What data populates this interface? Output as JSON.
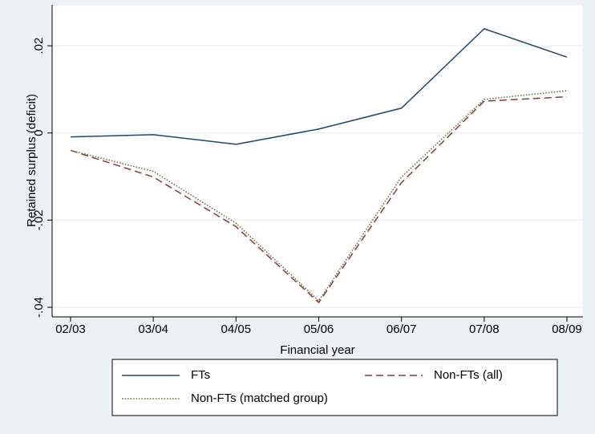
{
  "chart_data": {
    "type": "line",
    "x_label": "Financial year",
    "y_label": "Retained surplus (deficit)",
    "categories": [
      "02/03",
      "03/04",
      "04/05",
      "05/06",
      "06/07",
      "07/08",
      "08/09"
    ],
    "series": [
      {
        "name": "FTs",
        "color": "#1a476f",
        "dash": "solid",
        "values": [
          -0.0009,
          -0.0004,
          -0.0026,
          0.0009,
          0.0057,
          0.0239,
          0.0174
        ]
      },
      {
        "name": "Non-FTs (all)",
        "color": "#90353b",
        "dash": "dashed",
        "values": [
          -0.004,
          -0.0101,
          -0.0215,
          -0.0389,
          -0.0114,
          0.0073,
          0.0083
        ]
      },
      {
        "name": "Non-FTs (matched group)",
        "color": "#55752f",
        "dash": "dotted",
        "values": [
          -0.004,
          -0.0088,
          -0.0207,
          -0.0385,
          -0.0101,
          0.0077,
          0.0097
        ]
      }
    ],
    "ylim": [
      -0.0422,
      0.0294
    ],
    "yticks": [
      {
        "value": -0.04,
        "label": "-.04"
      },
      {
        "value": -0.02,
        "label": "-.02"
      },
      0,
      {
        "value": 0.02,
        "label": ".02"
      }
    ],
    "grid": true
  }
}
